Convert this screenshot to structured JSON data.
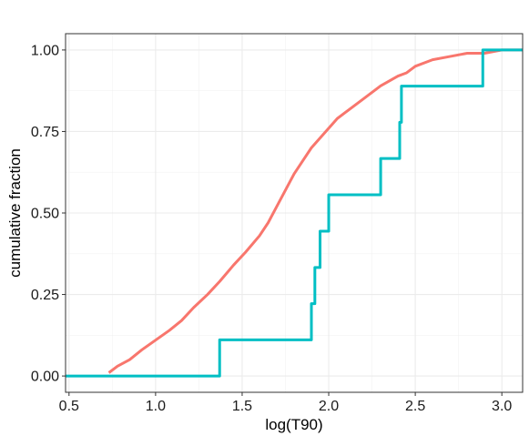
{
  "chart_data": {
    "type": "line",
    "title": "",
    "xlabel": "log(T90)",
    "ylabel": "cumulative fraction",
    "xlim": [
      0.48,
      3.12
    ],
    "ylim": [
      -0.05,
      1.05
    ],
    "x_ticks": [
      0.5,
      1.0,
      1.5,
      2.0,
      2.5,
      3.0
    ],
    "x_tick_labels": [
      "0.5",
      "1.0",
      "1.5",
      "2.0",
      "2.5",
      "3.0"
    ],
    "y_ticks": [
      0.0,
      0.25,
      0.5,
      0.75,
      1.0
    ],
    "y_tick_labels": [
      "0.00",
      "0.25",
      "0.50",
      "0.75",
      "1.00"
    ],
    "grid": true,
    "legend": "none",
    "series": [
      {
        "color": "#F8766D",
        "step": false,
        "x": [
          0.73,
          0.78,
          0.85,
          0.92,
          1.0,
          1.08,
          1.15,
          1.22,
          1.3,
          1.37,
          1.45,
          1.52,
          1.6,
          1.65,
          1.7,
          1.75,
          1.8,
          1.85,
          1.9,
          1.95,
          2.0,
          2.05,
          2.1,
          2.2,
          2.3,
          2.4,
          2.45,
          2.5,
          2.6,
          2.7,
          2.8,
          2.9,
          3.0,
          3.12
        ],
        "y": [
          0.01,
          0.03,
          0.05,
          0.08,
          0.11,
          0.14,
          0.17,
          0.21,
          0.25,
          0.29,
          0.34,
          0.38,
          0.43,
          0.47,
          0.52,
          0.57,
          0.62,
          0.66,
          0.7,
          0.73,
          0.76,
          0.79,
          0.81,
          0.85,
          0.89,
          0.92,
          0.93,
          0.95,
          0.97,
          0.98,
          0.99,
          0.99,
          1.0,
          1.0
        ]
      },
      {
        "color": "#00BFC4",
        "step": true,
        "x": [
          0.48,
          1.37,
          1.9,
          1.92,
          1.95,
          2.0,
          2.3,
          2.41,
          2.42,
          2.89,
          3.12
        ],
        "y": [
          0.0,
          0.111,
          0.222,
          0.333,
          0.444,
          0.556,
          0.667,
          0.778,
          0.889,
          1.0,
          1.0
        ]
      }
    ]
  }
}
